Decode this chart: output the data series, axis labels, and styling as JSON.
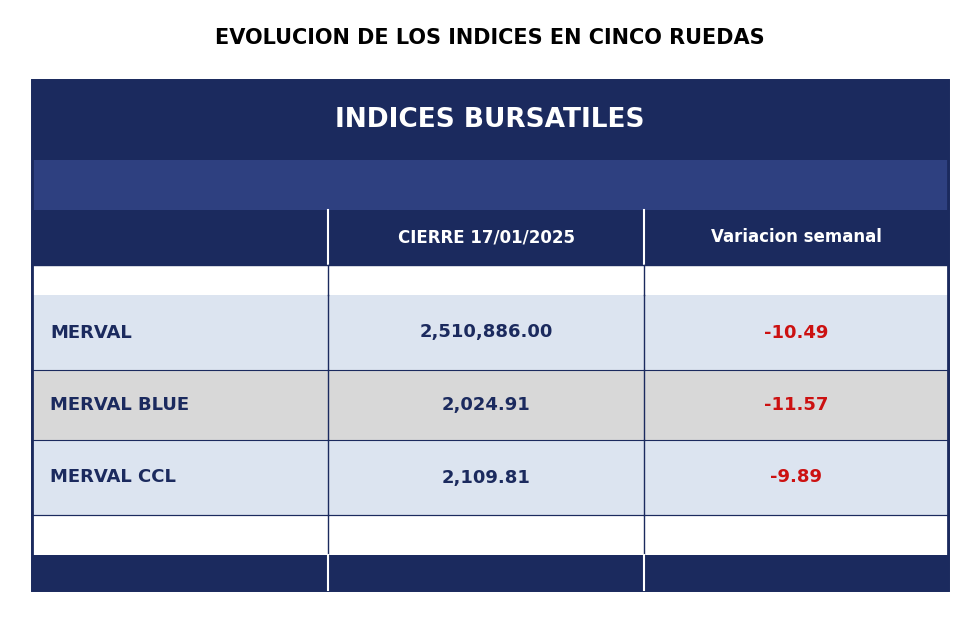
{
  "title": "EVOLUCION DE LOS INDICES EN CINCO RUEDAS",
  "table_header": "INDICES BURSATILES",
  "col_headers": [
    "",
    "CIERRE 17/01/2025",
    "Variacion semanal"
  ],
  "rows": [
    [
      "MERVAL",
      "2,510,886.00",
      "-10.49"
    ],
    [
      "MERVAL BLUE",
      "2,024.91",
      "-11.57"
    ],
    [
      "MERVAL CCL",
      "2,109.81",
      "-9.89"
    ]
  ],
  "dark_navy": "#1b2a5e",
  "header_bg": "#1b2a5e",
  "col_header_bg": "#1b2a5e",
  "subheader_bg": "#2e4080",
  "row_blue_light": "#dce4f0",
  "row_grey_light": "#d8d8d8",
  "row_white": "#ffffff",
  "text_white": "#ffffff",
  "text_dark": "#1b2a5e",
  "text_red": "#cc1111",
  "border_color": "#1b2a5e",
  "background": "#ffffff",
  "title_fontsize": 15,
  "header_fontsize": 19,
  "col_header_fontsize": 12,
  "data_fontsize": 13
}
